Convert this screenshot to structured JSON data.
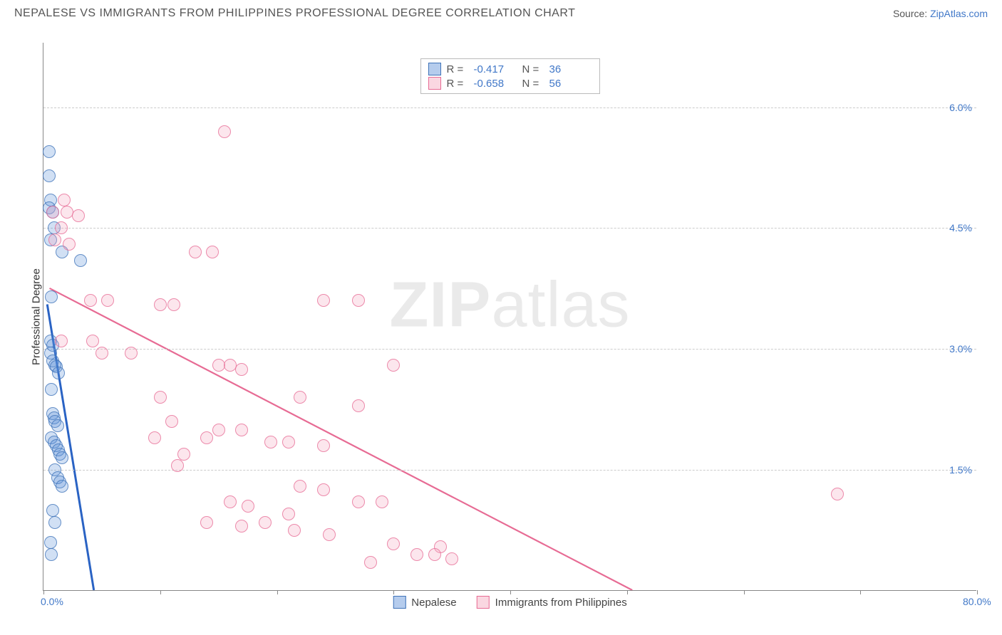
{
  "header": {
    "title": "NEPALESE VS IMMIGRANTS FROM PHILIPPINES PROFESSIONAL DEGREE CORRELATION CHART",
    "source_prefix": "Source: ",
    "source_link": "ZipAtlas.com"
  },
  "watermark": {
    "part1": "ZIP",
    "part2": "atlas"
  },
  "chart": {
    "type": "scatter",
    "background_color": "#ffffff",
    "grid_color": "#cccccc",
    "axis_color": "#888888",
    "label_color": "#4178c8",
    "ylabel": "Professional Degree",
    "ylabel_fontsize": 15,
    "xlim": [
      0,
      80
    ],
    "ylim": [
      0,
      6.8
    ],
    "xticks": [
      0,
      10,
      20,
      30,
      40,
      50,
      60,
      70,
      80
    ],
    "xtick_labels": {
      "0": "0.0%",
      "80": "80.0%"
    },
    "yticks": [
      1.5,
      3.0,
      4.5,
      6.0
    ],
    "ytick_labels": [
      "1.5%",
      "3.0%",
      "4.5%",
      "6.0%"
    ],
    "marker_radius": 9,
    "marker_fill_opacity": 0.28,
    "marker_stroke_opacity": 0.75,
    "series": [
      {
        "id": "nepalese",
        "label": "Nepalese",
        "color": "#5a8fd6",
        "stroke": "#3f73b8",
        "R": "-0.417",
        "N": "36",
        "trend": {
          "x1": 0.3,
          "y1": 3.55,
          "x2": 4.3,
          "y2": 0.0,
          "width": 3,
          "color": "#2a63c4"
        },
        "points": [
          [
            0.5,
            5.45
          ],
          [
            0.5,
            5.15
          ],
          [
            0.6,
            4.85
          ],
          [
            0.5,
            4.75
          ],
          [
            0.8,
            4.7
          ],
          [
            0.9,
            4.5
          ],
          [
            0.6,
            4.35
          ],
          [
            1.6,
            4.2
          ],
          [
            3.2,
            4.1
          ],
          [
            0.7,
            3.65
          ],
          [
            0.6,
            3.1
          ],
          [
            0.8,
            3.05
          ],
          [
            0.6,
            2.95
          ],
          [
            0.8,
            2.85
          ],
          [
            1.0,
            2.8
          ],
          [
            1.1,
            2.78
          ],
          [
            1.3,
            2.7
          ],
          [
            0.7,
            2.5
          ],
          [
            0.8,
            2.2
          ],
          [
            0.9,
            2.15
          ],
          [
            1.0,
            2.1
          ],
          [
            1.2,
            2.05
          ],
          [
            0.7,
            1.9
          ],
          [
            0.9,
            1.85
          ],
          [
            1.1,
            1.8
          ],
          [
            1.3,
            1.75
          ],
          [
            1.4,
            1.7
          ],
          [
            1.6,
            1.65
          ],
          [
            1.0,
            1.5
          ],
          [
            1.2,
            1.4
          ],
          [
            1.4,
            1.35
          ],
          [
            1.6,
            1.3
          ],
          [
            0.8,
            1.0
          ],
          [
            1.0,
            0.85
          ],
          [
            0.6,
            0.6
          ],
          [
            0.7,
            0.45
          ]
        ]
      },
      {
        "id": "philippines",
        "label": "Immigrants from Philippines",
        "color": "#f4a6bd",
        "stroke": "#e76b94",
        "R": "-0.658",
        "N": "56",
        "trend": {
          "x1": 0.5,
          "y1": 3.75,
          "x2": 50.5,
          "y2": 0.0,
          "width": 2.2,
          "color": "#e76b94"
        },
        "points": [
          [
            15.5,
            5.7
          ],
          [
            1.8,
            4.85
          ],
          [
            2.0,
            4.7
          ],
          [
            0.8,
            4.7
          ],
          [
            3.0,
            4.65
          ],
          [
            1.5,
            4.5
          ],
          [
            1.0,
            4.35
          ],
          [
            2.2,
            4.3
          ],
          [
            13.0,
            4.2
          ],
          [
            14.5,
            4.2
          ],
          [
            4.0,
            3.6
          ],
          [
            5.5,
            3.6
          ],
          [
            10.0,
            3.55
          ],
          [
            11.2,
            3.55
          ],
          [
            24.0,
            3.6
          ],
          [
            27.0,
            3.6
          ],
          [
            1.5,
            3.1
          ],
          [
            4.2,
            3.1
          ],
          [
            5.0,
            2.95
          ],
          [
            7.5,
            2.95
          ],
          [
            15.0,
            2.8
          ],
          [
            16.0,
            2.8
          ],
          [
            17.0,
            2.75
          ],
          [
            30.0,
            2.8
          ],
          [
            10.0,
            2.4
          ],
          [
            22.0,
            2.4
          ],
          [
            27.0,
            2.3
          ],
          [
            11.0,
            2.1
          ],
          [
            15.0,
            2.0
          ],
          [
            17.0,
            2.0
          ],
          [
            9.5,
            1.9
          ],
          [
            14.0,
            1.9
          ],
          [
            19.5,
            1.85
          ],
          [
            21.0,
            1.85
          ],
          [
            24.0,
            1.8
          ],
          [
            12.0,
            1.7
          ],
          [
            11.5,
            1.55
          ],
          [
            22.0,
            1.3
          ],
          [
            24.0,
            1.25
          ],
          [
            68.0,
            1.2
          ],
          [
            16.0,
            1.1
          ],
          [
            17.5,
            1.05
          ],
          [
            27.0,
            1.1
          ],
          [
            29.0,
            1.1
          ],
          [
            21.0,
            0.95
          ],
          [
            14.0,
            0.85
          ],
          [
            19.0,
            0.85
          ],
          [
            17.0,
            0.8
          ],
          [
            21.5,
            0.75
          ],
          [
            24.5,
            0.7
          ],
          [
            30.0,
            0.58
          ],
          [
            34.0,
            0.55
          ],
          [
            32.0,
            0.45
          ],
          [
            33.5,
            0.45
          ],
          [
            35.0,
            0.4
          ],
          [
            28.0,
            0.35
          ]
        ]
      }
    ],
    "top_legend": {
      "R_prefix": "R  =",
      "N_prefix": "N  ="
    }
  }
}
